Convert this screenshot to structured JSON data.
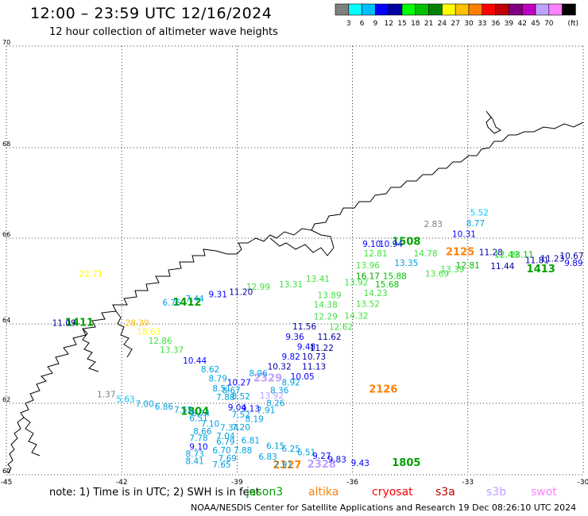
{
  "header": {
    "title": "12:00 – 23:59 UTC 12/16/2024",
    "subtitle": "12 hour collection of altimeter wave heights"
  },
  "colorbar": {
    "unit": "(ft)",
    "swatches": [
      {
        "color": "#7f7f7f",
        "label": ""
      },
      {
        "color": "#00ffff",
        "label": "3"
      },
      {
        "color": "#00bfff",
        "label": "6"
      },
      {
        "color": "#0000ff",
        "label": "9"
      },
      {
        "color": "#0000a0",
        "label": "12"
      },
      {
        "color": "#00ff00",
        "label": "15"
      },
      {
        "color": "#00c000",
        "label": "18"
      },
      {
        "color": "#008000",
        "label": "21"
      },
      {
        "color": "#ffff00",
        "label": "24"
      },
      {
        "color": "#ffc000",
        "label": "27"
      },
      {
        "color": "#ff8000",
        "label": "30"
      },
      {
        "color": "#ff0000",
        "label": "33"
      },
      {
        "color": "#c00000",
        "label": "36"
      },
      {
        "color": "#800080",
        "label": "39"
      },
      {
        "color": "#c000c0",
        "label": "42"
      },
      {
        "color": "#c0a0ff",
        "label": "45"
      },
      {
        "color": "#ff80ff",
        "label": "70"
      },
      {
        "color": "#000000",
        "label": ""
      }
    ]
  },
  "map": {
    "lon_range": [
      -45,
      -30
    ],
    "lat_range": [
      60,
      70
    ],
    "lon_ticks": [
      {
        "v": -45,
        "label": "-45"
      },
      {
        "v": -42,
        "label": "-42"
      },
      {
        "v": -39,
        "label": "-39"
      },
      {
        "v": -36,
        "label": "-36"
      },
      {
        "v": -33,
        "label": "-33"
      },
      {
        "v": -30,
        "label": "-30"
      }
    ],
    "lat_ticks": [
      {
        "v": 60,
        "label": "60"
      },
      {
        "v": 62,
        "label": "62"
      },
      {
        "v": 64,
        "label": "64"
      },
      {
        "v": 66,
        "label": "66"
      },
      {
        "v": 68,
        "label": "68"
      },
      {
        "v": 70,
        "label": "70"
      }
    ],
    "gridlines": true,
    "track_markers": [
      {
        "label": "1412",
        "lon": -40.3,
        "lat": 64.43,
        "color": "#00a000"
      },
      {
        "label": "1508",
        "lon": -34.6,
        "lat": 65.84,
        "color": "#00a000"
      },
      {
        "label": "1413",
        "lon": -31.1,
        "lat": 65.2,
        "color": "#00a000"
      },
      {
        "label": "2125",
        "lon": -33.2,
        "lat": 65.6,
        "color": "#ff8000"
      },
      {
        "label": "1411",
        "lon": -43.1,
        "lat": 63.95,
        "color": "#00a000"
      },
      {
        "label": "2329",
        "lon": -38.2,
        "lat": 62.55,
        "color": "#c0a0ff"
      },
      {
        "label": "2126",
        "lon": -35.2,
        "lat": 62.27,
        "color": "#ff8000"
      },
      {
        "label": "1804",
        "lon": -40.1,
        "lat": 61.68,
        "color": "#00a000"
      },
      {
        "label": "2127",
        "lon": -37.7,
        "lat": 60.18,
        "color": "#ff8000"
      },
      {
        "label": "2328",
        "lon": -36.8,
        "lat": 60.2,
        "color": "#c0a0ff"
      },
      {
        "label": "1805",
        "lon": -34.6,
        "lat": 60.24,
        "color": "#00a000"
      }
    ],
    "points": [
      {
        "t": "5.52",
        "lon": -32.7,
        "lat": 66.5,
        "c": "#00c8ff"
      },
      {
        "t": "2.83",
        "lon": -33.9,
        "lat": 66.25,
        "c": "#7f7f7f"
      },
      {
        "t": "8.77",
        "lon": -32.8,
        "lat": 66.26,
        "c": "#00a0e0"
      },
      {
        "t": "10.31",
        "lon": -33.1,
        "lat": 66.03,
        "c": "#0000ff"
      },
      {
        "t": "9.10",
        "lon": -35.5,
        "lat": 65.8,
        "c": "#0000ff"
      },
      {
        "t": "10.94",
        "lon": -35.0,
        "lat": 65.8,
        "c": "#0000ff"
      },
      {
        "t": "11.28",
        "lon": -32.4,
        "lat": 65.6,
        "c": "#0000a0"
      },
      {
        "t": "12.49",
        "lon": -32.0,
        "lat": 65.55,
        "c": "#00e000"
      },
      {
        "t": "13.11",
        "lon": -31.6,
        "lat": 65.55,
        "c": "#00c000"
      },
      {
        "t": "10.67",
        "lon": -30.3,
        "lat": 65.52,
        "c": "#0000a0"
      },
      {
        "t": "11.23",
        "lon": -30.8,
        "lat": 65.45,
        "c": "#0000a0"
      },
      {
        "t": "11.81",
        "lon": -31.2,
        "lat": 65.42,
        "c": "#0000a0"
      },
      {
        "t": "9.89",
        "lon": -30.25,
        "lat": 65.35,
        "c": "#0000ff"
      },
      {
        "t": "12.81",
        "lon": -35.4,
        "lat": 65.57,
        "c": "#40e040"
      },
      {
        "t": "14.78",
        "lon": -34.1,
        "lat": 65.57,
        "c": "#40e040"
      },
      {
        "t": "13.35",
        "lon": -34.6,
        "lat": 65.35,
        "c": "#00a0e0"
      },
      {
        "t": "12.81",
        "lon": -33.0,
        "lat": 65.3,
        "c": "#00c000"
      },
      {
        "t": "11.44",
        "lon": -32.1,
        "lat": 65.28,
        "c": "#0000a0"
      },
      {
        "t": "13.96",
        "lon": -35.6,
        "lat": 65.3,
        "c": "#40e040"
      },
      {
        "t": "15.88",
        "lon": -34.9,
        "lat": 65.05,
        "c": "#00c000"
      },
      {
        "t": "16.17",
        "lon": -35.6,
        "lat": 65.05,
        "c": "#00a000"
      },
      {
        "t": "13.69",
        "lon": -33.8,
        "lat": 65.1,
        "c": "#40e040"
      },
      {
        "t": "13.39",
        "lon": -33.4,
        "lat": 65.2,
        "c": "#40e040"
      },
      {
        "t": "13.31",
        "lon": -37.6,
        "lat": 64.85,
        "c": "#40e040"
      },
      {
        "t": "13.41",
        "lon": -36.9,
        "lat": 64.98,
        "c": "#40e040"
      },
      {
        "t": "13.92",
        "lon": -35.9,
        "lat": 64.9,
        "c": "#40e040"
      },
      {
        "t": "15.68",
        "lon": -35.1,
        "lat": 64.85,
        "c": "#00c000"
      },
      {
        "t": "13.89",
        "lon": -36.6,
        "lat": 64.6,
        "c": "#40e040"
      },
      {
        "t": "14.23",
        "lon": -35.4,
        "lat": 64.65,
        "c": "#40e040"
      },
      {
        "t": "14.38",
        "lon": -36.7,
        "lat": 64.38,
        "c": "#40e040"
      },
      {
        "t": "13.52",
        "lon": -35.6,
        "lat": 64.4,
        "c": "#40e040"
      },
      {
        "t": "12.29",
        "lon": -36.7,
        "lat": 64.1,
        "c": "#40e040"
      },
      {
        "t": "14.32",
        "lon": -35.9,
        "lat": 64.12,
        "c": "#40e040"
      },
      {
        "t": "12.62",
        "lon": -36.3,
        "lat": 63.85,
        "c": "#40e040"
      },
      {
        "t": "12.99",
        "lon": -38.45,
        "lat": 64.8,
        "c": "#40e040"
      },
      {
        "t": "11.20",
        "lon": -38.9,
        "lat": 64.68,
        "c": "#0000a0"
      },
      {
        "t": "9.31",
        "lon": -39.5,
        "lat": 64.62,
        "c": "#0000ff"
      },
      {
        "t": "7.44",
        "lon": -40.1,
        "lat": 64.52,
        "c": "#00a0e0"
      },
      {
        "t": "6.75",
        "lon": -40.7,
        "lat": 64.43,
        "c": "#00a0e0"
      },
      {
        "t": "11.56",
        "lon": -37.25,
        "lat": 63.86,
        "c": "#0000a0"
      },
      {
        "t": "9.36",
        "lon": -37.5,
        "lat": 63.6,
        "c": "#0000ff"
      },
      {
        "t": "11.62",
        "lon": -36.6,
        "lat": 63.6,
        "c": "#0000a0"
      },
      {
        "t": "9.48",
        "lon": -37.2,
        "lat": 63.35,
        "c": "#0000ff"
      },
      {
        "t": "11.22",
        "lon": -36.8,
        "lat": 63.32,
        "c": "#0000a0"
      },
      {
        "t": "9.82",
        "lon": -37.6,
        "lat": 63.1,
        "c": "#0000ff"
      },
      {
        "t": "10.73",
        "lon": -37.0,
        "lat": 63.1,
        "c": "#0000a0"
      },
      {
        "t": "10.32",
        "lon": -37.9,
        "lat": 62.85,
        "c": "#0000a0"
      },
      {
        "t": "11.13",
        "lon": -37.0,
        "lat": 62.85,
        "c": "#0000a0"
      },
      {
        "t": "8.96",
        "lon": -38.45,
        "lat": 62.68,
        "c": "#00a0e0"
      },
      {
        "t": "10.05",
        "lon": -37.3,
        "lat": 62.6,
        "c": "#0000ff"
      },
      {
        "t": "10.27",
        "lon": -38.95,
        "lat": 62.45,
        "c": "#0000ff"
      },
      {
        "t": "8.92",
        "lon": -37.6,
        "lat": 62.45,
        "c": "#00a0e0"
      },
      {
        "t": "8.67",
        "lon": -39.15,
        "lat": 62.25,
        "c": "#00a0e0"
      },
      {
        "t": "8.36",
        "lon": -37.9,
        "lat": 62.25,
        "c": "#00a0e0"
      },
      {
        "t": "8.52",
        "lon": -38.9,
        "lat": 62.1,
        "c": "#00a0e0"
      },
      {
        "t": "13.92",
        "lon": -38.1,
        "lat": 62.12,
        "c": "#c0a0ff"
      },
      {
        "t": "8.26",
        "lon": -38.0,
        "lat": 61.92,
        "c": "#00a0e0"
      },
      {
        "t": "7.91",
        "lon": -38.25,
        "lat": 61.72,
        "c": "#00a0e0"
      },
      {
        "t": "8.19",
        "lon": -38.55,
        "lat": 61.48,
        "c": "#00a0e0"
      },
      {
        "t": "7.20",
        "lon": -38.9,
        "lat": 61.25,
        "c": "#00a0e0"
      },
      {
        "t": "7.34",
        "lon": -39.2,
        "lat": 61.23,
        "c": "#00a0e0"
      },
      {
        "t": "7.04",
        "lon": -39.3,
        "lat": 61.0,
        "c": "#00a0e0"
      },
      {
        "t": "6.81",
        "lon": -38.65,
        "lat": 60.88,
        "c": "#00a0e0"
      },
      {
        "t": "6.15",
        "lon": -38.0,
        "lat": 60.72,
        "c": "#00a0e0"
      },
      {
        "t": "6.25",
        "lon": -37.6,
        "lat": 60.65,
        "c": "#00a0e0"
      },
      {
        "t": "6.51",
        "lon": -37.2,
        "lat": 60.55,
        "c": "#00a0e0"
      },
      {
        "t": "9.27",
        "lon": -36.8,
        "lat": 60.45,
        "c": "#0000ff"
      },
      {
        "t": "9.83",
        "lon": -36.4,
        "lat": 60.35,
        "c": "#0000ff"
      },
      {
        "t": "9.43",
        "lon": -35.8,
        "lat": 60.25,
        "c": "#0000ff"
      },
      {
        "t": "6.83",
        "lon": -38.2,
        "lat": 60.42,
        "c": "#00a0e0"
      },
      {
        "t": "7.91",
        "lon": -37.8,
        "lat": 60.2,
        "c": "#00a0e0"
      },
      {
        "t": "7.88",
        "lon": -38.85,
        "lat": 60.6,
        "c": "#00a0e0"
      },
      {
        "t": "6.70",
        "lon": -39.4,
        "lat": 60.6,
        "c": "#00a0e0"
      },
      {
        "t": "6.79",
        "lon": -39.3,
        "lat": 60.84,
        "c": "#00a0e0"
      },
      {
        "t": "7.65",
        "lon": -39.4,
        "lat": 60.2,
        "c": "#00a0e0"
      },
      {
        "t": "7.69",
        "lon": -39.25,
        "lat": 60.38,
        "c": "#00a0e0"
      },
      {
        "t": "1.37",
        "lon": -42.4,
        "lat": 62.15,
        "c": "#7f7f7f"
      },
      {
        "t": "5.63",
        "lon": -41.9,
        "lat": 62.03,
        "c": "#00c8ff"
      },
      {
        "t": "7.00",
        "lon": -41.4,
        "lat": 61.9,
        "c": "#00a0e0"
      },
      {
        "t": "6.86",
        "lon": -40.9,
        "lat": 61.82,
        "c": "#00a0e0"
      },
      {
        "t": "7.52",
        "lon": -40.4,
        "lat": 61.73,
        "c": "#00a0e0"
      },
      {
        "t": "6.74",
        "lon": -39.95,
        "lat": 61.63,
        "c": "#00a0e0"
      },
      {
        "t": "6.51",
        "lon": -40.0,
        "lat": 61.5,
        "c": "#00a0e0"
      },
      {
        "t": "7.10",
        "lon": -39.7,
        "lat": 61.35,
        "c": "#00a0e0"
      },
      {
        "t": "8.66",
        "lon": -39.9,
        "lat": 61.13,
        "c": "#00a0e0"
      },
      {
        "t": "7.78",
        "lon": -40.0,
        "lat": 60.95,
        "c": "#00a0e0"
      },
      {
        "t": "9.10",
        "lon": -40.0,
        "lat": 60.7,
        "c": "#0000ff"
      },
      {
        "t": "8.73",
        "lon": -40.1,
        "lat": 60.5,
        "c": "#00a0e0"
      },
      {
        "t": "8.41",
        "lon": -40.1,
        "lat": 60.3,
        "c": "#00a0e0"
      },
      {
        "t": "9.04",
        "lon": -39.0,
        "lat": 61.8,
        "c": "#0000ff"
      },
      {
        "t": "9.13",
        "lon": -38.65,
        "lat": 61.77,
        "c": "#0000ff"
      },
      {
        "t": "7.52",
        "lon": -38.9,
        "lat": 61.6,
        "c": "#00a0e0"
      },
      {
        "t": "8.51",
        "lon": -39.4,
        "lat": 62.3,
        "c": "#00a0e0"
      },
      {
        "t": "7.88",
        "lon": -39.3,
        "lat": 62.08,
        "c": "#00a0e0"
      },
      {
        "t": "8.79",
        "lon": -39.5,
        "lat": 62.55,
        "c": "#00a0e0"
      },
      {
        "t": "8.62",
        "lon": -39.7,
        "lat": 62.78,
        "c": "#00a0e0"
      },
      {
        "t": "10.44",
        "lon": -40.1,
        "lat": 63.0,
        "c": "#0000ff"
      },
      {
        "t": "13.37",
        "lon": -40.7,
        "lat": 63.27,
        "c": "#40e040"
      },
      {
        "t": "12.86",
        "lon": -41.0,
        "lat": 63.5,
        "c": "#40e040"
      },
      {
        "t": "18.63",
        "lon": -41.3,
        "lat": 63.73,
        "c": "#ffff00"
      },
      {
        "t": "28.39",
        "lon": -41.6,
        "lat": 63.95,
        "c": "#ffc000"
      },
      {
        "t": "11.09",
        "lon": -43.5,
        "lat": 63.95,
        "c": "#0000a0"
      },
      {
        "t": "22.71",
        "lon": -42.8,
        "lat": 65.1,
        "c": "#ffff00"
      }
    ]
  },
  "footnote": "note:  1) Time is in UTC;  2) SWH is in feet",
  "satellites": [
    {
      "name": "jason3",
      "color": "#00a000"
    },
    {
      "name": "altika",
      "color": "#ff8000"
    },
    {
      "name": "cryosat",
      "color": "#ff0000"
    },
    {
      "name": "s3a",
      "color": "#c00000"
    },
    {
      "name": "s3b",
      "color": "#c0a0ff"
    },
    {
      "name": "swot",
      "color": "#ff80ff"
    }
  ],
  "credit": "NOAA/NESDIS Center for Satellite Applications and Research    19 Dec 08:26:10 UTC 2024"
}
